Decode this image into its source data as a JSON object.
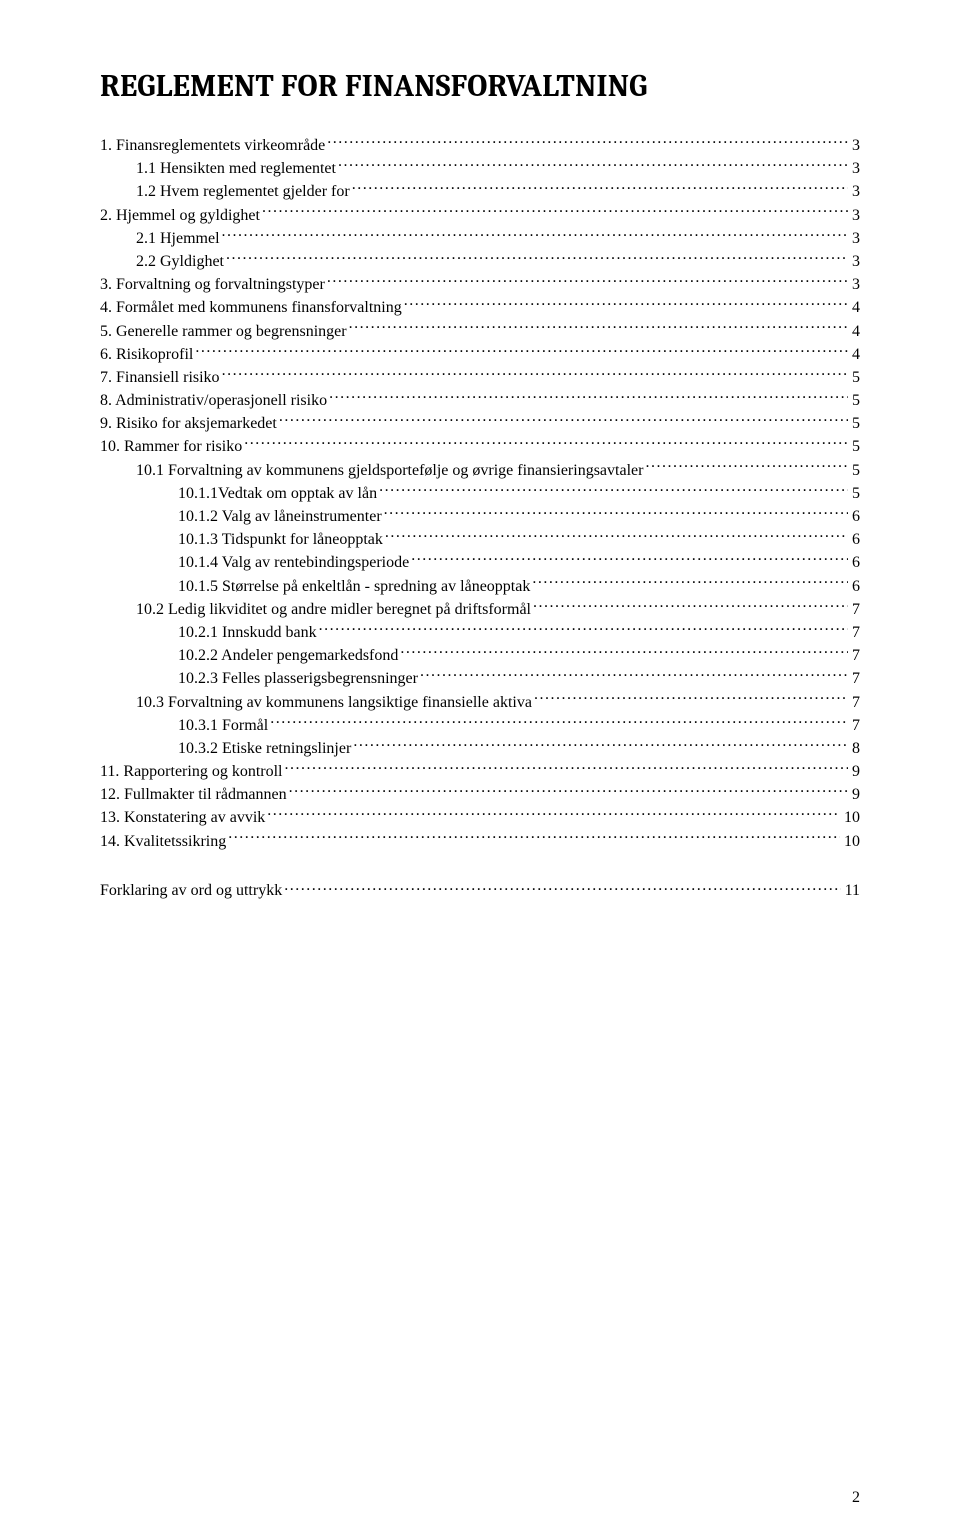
{
  "title": "REGLEMENT FOR FINANSFORVALTNING",
  "title_color": "#000000",
  "title_fontsize": 31,
  "body_fontsize": 16,
  "text_color": "#000000",
  "background_color": "#ffffff",
  "page_number": "2",
  "glossary": {
    "text": "Forklaring av ord og uttrykk",
    "page": "11"
  },
  "toc": [
    {
      "indent": 0,
      "text": "1. Finansreglementets virkeområde",
      "page": "3",
      "leader_space": true
    },
    {
      "indent": 1,
      "text": "1.1 Hensikten med reglementet",
      "page": "3",
      "leader_space": true
    },
    {
      "indent": 1,
      "text": "1.2 Hvem reglementet gjelder for",
      "page": "3",
      "leader_space": true
    },
    {
      "indent": 0,
      "text": "2. Hjemmel og gyldighet",
      "page": "3",
      "leader_space": true
    },
    {
      "indent": 1,
      "text": "2.1 Hjemmel",
      "page": "3",
      "leader_space": true
    },
    {
      "indent": 1,
      "text": "2.2 Gyldighet",
      "page": "3",
      "leader_space": true
    },
    {
      "indent": 0,
      "text": "3. Forvaltning og forvaltningstyper",
      "page": "3",
      "leader_space": true
    },
    {
      "indent": 0,
      "text": "4. Formålet med kommunens finansforvaltning",
      "page": "4",
      "leader_space": true
    },
    {
      "indent": 0,
      "text": "5. Generelle rammer og begrensninger",
      "page": "4",
      "leader_space": true
    },
    {
      "indent": 0,
      "text": "6. Risikoprofil",
      "page": "4",
      "leader_space": true
    },
    {
      "indent": 0,
      "text": "7. Finansiell risiko",
      "page": "5",
      "leader_space": true
    },
    {
      "indent": 0,
      "text": "8. Administrativ/operasjonell risiko",
      "page": "5",
      "leader_space": true
    },
    {
      "indent": 0,
      "text": "9. Risiko for aksjemarkedet",
      "page": "5",
      "leader_space": true
    },
    {
      "indent": 0,
      "text": "10. Rammer for risiko",
      "page": "5",
      "leader_space": false
    },
    {
      "indent": 1,
      "text": "10.1 Forvaltning av kommunens gjeldsportefølje og øvrige finansieringsavtaler",
      "page": "5",
      "leader_space": false
    },
    {
      "indent": 2,
      "text": "10.1.1Vedtak om opptak av lån",
      "page": "5",
      "leader_space": false
    },
    {
      "indent": 2,
      "text": "10.1.2 Valg av låneinstrumenter",
      "page": "6",
      "leader_space": false
    },
    {
      "indent": 2,
      "text": "10.1.3 Tidspunkt for låneopptak",
      "page": "6",
      "leader_space": false
    },
    {
      "indent": 2,
      "text": "10.1.4 Valg av rentebindingsperiode",
      "page": "6",
      "leader_space": false
    },
    {
      "indent": 2,
      "text": "10.1.5 Størrelse på enkeltlån - spredning av låneopptak",
      "page": "6",
      "leader_space": false
    },
    {
      "indent": 1,
      "text": "10.2 Ledig likviditet og andre midler beregnet på driftsformål",
      "page": "7",
      "leader_space": false
    },
    {
      "indent": 2,
      "text": "10.2.1 Innskudd bank",
      "page": "7",
      "leader_space": false
    },
    {
      "indent": 2,
      "text": "10.2.2 Andeler pengemarkedsfond",
      "page": "7",
      "leader_space": false
    },
    {
      "indent": 2,
      "text": "10.2.3 Felles plasserigsbegrensninger",
      "page": "7",
      "leader_space": false
    },
    {
      "indent": 1,
      "text": "10.3 Forvaltning av kommunens langsiktige finansielle aktiva",
      "page": "7",
      "leader_space": false
    },
    {
      "indent": 2,
      "text": "10.3.1 Formål",
      "page": "7",
      "leader_space": false
    },
    {
      "indent": 2,
      "text": "10.3.2 Etiske retningslinjer",
      "page": "8",
      "leader_space": false
    },
    {
      "indent": 0,
      "text": "11. Rapportering og kontroll",
      "page": "9",
      "leader_space": false
    },
    {
      "indent": 0,
      "text": "12. Fullmakter til rådmannen",
      "page": "9",
      "leader_space": false
    },
    {
      "indent": 0,
      "text": "13. Konstatering av avvik",
      "page": "10",
      "leader_space": false
    },
    {
      "indent": 0,
      "text": "14. Kvalitetssikring",
      "page": "10",
      "leader_space": false
    }
  ]
}
